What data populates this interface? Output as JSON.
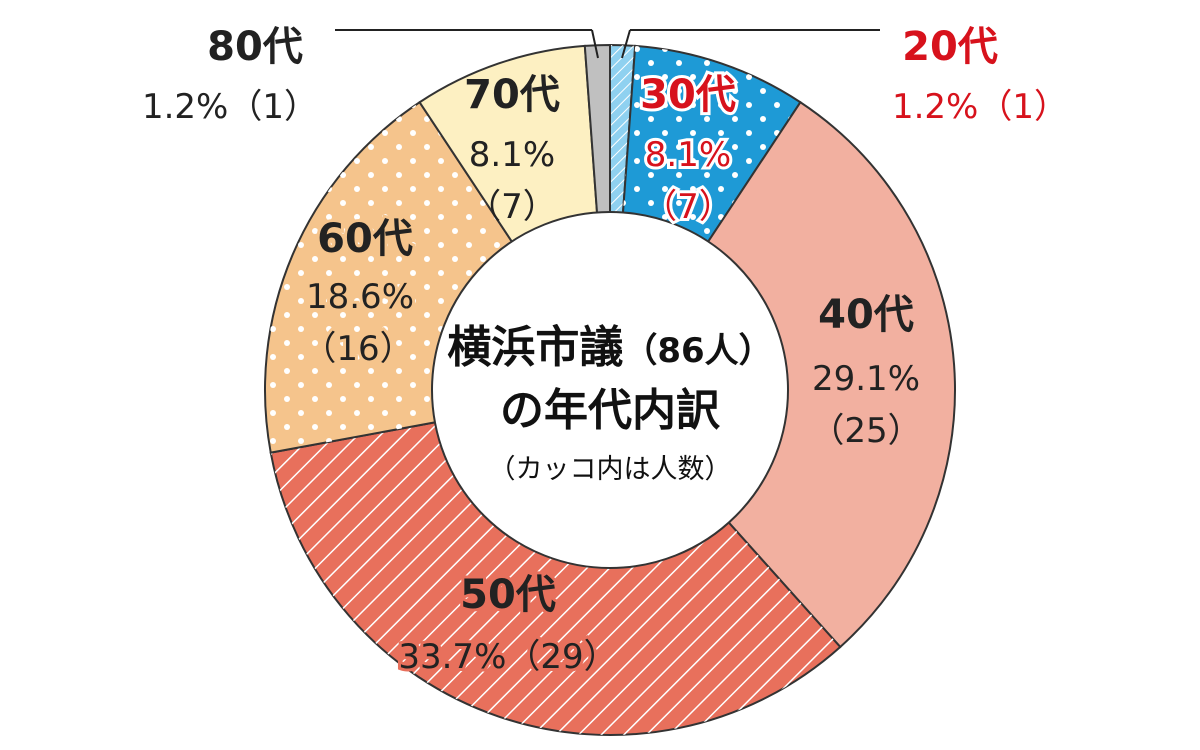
{
  "chart_data": {
    "type": "pie",
    "title_line1": "横浜市議",
    "title_total": "（86人）",
    "title_line2": "の年代内訳",
    "subtitle": "（カッコ内は人数）",
    "total": 86,
    "slices": [
      {
        "label": "20代",
        "pct": "1.2%",
        "count": "（1）",
        "value": 1,
        "color": "#8fd1f0",
        "label_color": "#d7121c"
      },
      {
        "label": "30代",
        "pct": "8.1%",
        "count": "（7）",
        "value": 7,
        "color": "#1e9ad6",
        "label_color": "#d7121c"
      },
      {
        "label": "40代",
        "pct": "29.1%",
        "count": "（25）",
        "value": 25,
        "color": "#f2b0a0",
        "label_color": "#222222"
      },
      {
        "label": "50代",
        "pct": "33.7%",
        "count": "（29）",
        "value": 29,
        "color": "#e8705c",
        "label_color": "#222222"
      },
      {
        "label": "60代",
        "pct": "18.6%",
        "count": "（16）",
        "value": 16,
        "color": "#f5c48c",
        "label_color": "#222222"
      },
      {
        "label": "70代",
        "pct": "8.1%",
        "count": "（7）",
        "value": 7,
        "color": "#fdf0c2",
        "label_color": "#222222"
      },
      {
        "label": "80代",
        "pct": "1.2%",
        "count": "（1）",
        "value": 1,
        "color": "#c0c0c0",
        "label_color": "#222222"
      }
    ]
  }
}
